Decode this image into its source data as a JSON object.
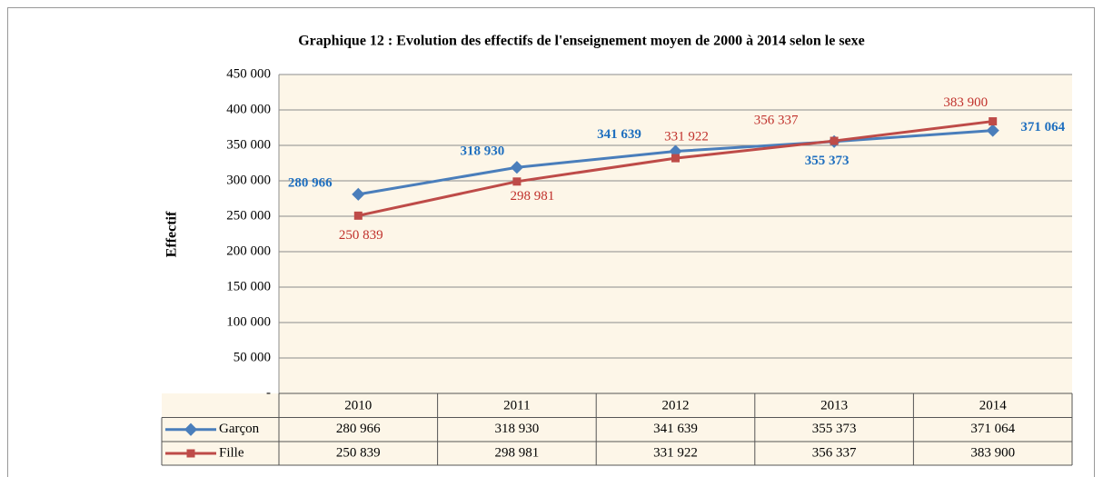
{
  "chart_data": {
    "type": "line",
    "title": "Graphique 12 : Evolution des effectifs de l'enseignement moyen de 2000 à 2014 selon le sexe",
    "y_label": "Effectif",
    "categories": [
      "2010",
      "2011",
      "2012",
      "2013",
      "2014"
    ],
    "series": [
      {
        "name": "Garçon",
        "color": "#4a7ebb",
        "label_color": "#1f6fbf",
        "values": [
          280966,
          318930,
          341639,
          355373,
          371064
        ],
        "value_labels": [
          "280 966",
          "318 930",
          "341 639",
          "355 373",
          "371 064"
        ]
      },
      {
        "name": "Fille",
        "color": "#be4b48",
        "label_color": "#c0302b",
        "values": [
          250839,
          298981,
          331922,
          356337,
          383900
        ],
        "value_labels": [
          "250 839",
          "298 981",
          "331 922",
          "356 337",
          "383 900"
        ]
      }
    ],
    "ylim": [
      0,
      450000
    ],
    "yticks": [
      {
        "value": 0,
        "label": "-"
      },
      {
        "value": 50000,
        "label": "50 000"
      },
      {
        "value": 100000,
        "label": "100 000"
      },
      {
        "value": 150000,
        "label": "150 000"
      },
      {
        "value": 200000,
        "label": "200 000"
      },
      {
        "value": 250000,
        "label": "250 000"
      },
      {
        "value": 300000,
        "label": "300 000"
      },
      {
        "value": 350000,
        "label": "350 000"
      },
      {
        "value": 400000,
        "label": "400 000"
      },
      {
        "value": 450000,
        "label": "450 000"
      }
    ],
    "grid": true
  }
}
